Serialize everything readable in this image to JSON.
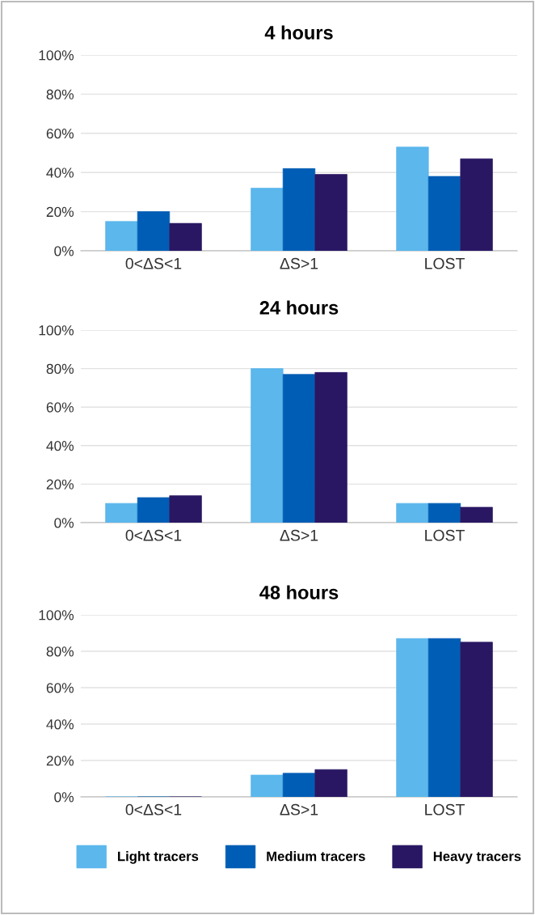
{
  "chart_data": [
    {
      "type": "bar",
      "title": "4 hours",
      "categories": [
        "0<ΔS<1",
        "ΔS>1",
        "LOST"
      ],
      "series": [
        {
          "color": "#5bb7ec",
          "values": [
            15,
            32,
            53
          ]
        },
        {
          "color": "#005db5",
          "values": [
            20,
            42,
            38
          ]
        },
        {
          "color": "#2a1763",
          "values": [
            14,
            39,
            47
          ]
        }
      ],
      "ylim": [
        0,
        100
      ],
      "yticks": [
        {
          "value": 0,
          "label": "0%"
        },
        {
          "value": 20,
          "label": "20%"
        },
        {
          "value": 40,
          "label": "40%"
        },
        {
          "value": 60,
          "label": "60%"
        },
        {
          "value": 80,
          "label": "80%"
        },
        {
          "value": 100,
          "label": "100%"
        }
      ],
      "grid": "y"
    },
    {
      "type": "bar",
      "title": "24 hours",
      "categories": [
        "0<ΔS<1",
        "ΔS>1",
        "LOST"
      ],
      "series": [
        {
          "color": "#5bb7ec",
          "values": [
            10,
            80,
            10
          ]
        },
        {
          "color": "#005db5",
          "values": [
            13,
            77,
            10
          ]
        },
        {
          "color": "#2a1763",
          "values": [
            14,
            78,
            8
          ]
        }
      ],
      "ylim": [
        0,
        100
      ],
      "yticks": [
        {
          "value": 0,
          "label": "0%"
        },
        {
          "value": 20,
          "label": "20%"
        },
        {
          "value": 40,
          "label": "40%"
        },
        {
          "value": 60,
          "label": "60%"
        },
        {
          "value": 80,
          "label": "80%"
        },
        {
          "value": 100,
          "label": "100%"
        }
      ],
      "grid": "y"
    },
    {
      "type": "bar",
      "title": "48 hours",
      "categories": [
        "0<ΔS<1",
        "ΔS>1",
        "LOST"
      ],
      "series": [
        {
          "name": "Light tracers",
          "color": "#5bb7ec",
          "values": [
            0,
            12,
            87
          ]
        },
        {
          "name": "Medium tracers",
          "color": "#005db5",
          "values": [
            0,
            13,
            87
          ]
        },
        {
          "name": "Heavy tracers",
          "color": "#2a1763",
          "values": [
            0,
            15,
            85
          ]
        }
      ],
      "ylim": [
        0,
        100
      ],
      "yticks": [
        {
          "value": 0,
          "label": "0%"
        },
        {
          "value": 20,
          "label": "20%"
        },
        {
          "value": 40,
          "label": "40%"
        },
        {
          "value": 60,
          "label": "60%"
        },
        {
          "value": 80,
          "label": "80%"
        },
        {
          "value": 100,
          "label": "100%"
        }
      ],
      "grid": "y",
      "legend": "bottom"
    }
  ]
}
